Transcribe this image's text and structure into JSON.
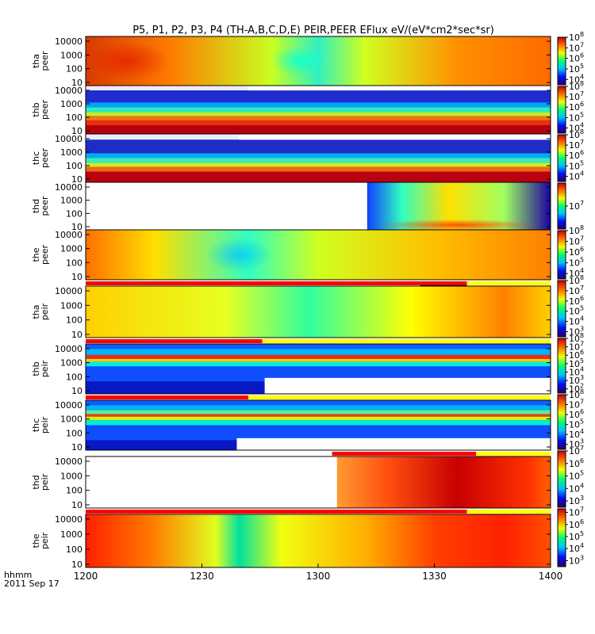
{
  "title": "P5, P1, P2, P3, P4 (TH-A,B,C,D,E) PEIR,PEER EFlux eV/(eV*cm2*sec*sr)",
  "chart_data": {
    "type": "heatmap",
    "title": "P5, P1, P2, P3, P4 (TH-A,B,C,D,E) PEIR,PEER EFlux eV/(eV*cm2*sec*sr)",
    "x_axis": {
      "ticks": [
        "1200",
        "1230",
        "1300",
        "1330",
        "1400"
      ],
      "label_line1": "hhmm",
      "label_line2": "2011 Sep 17"
    },
    "y_ticks": [
      "10",
      "100",
      "1000",
      "10000"
    ],
    "colormap": [
      "#2a005f",
      "#0010ff",
      "#00c0ff",
      "#00ff70",
      "#f0ff00",
      "#ff7000",
      "#c80000"
    ],
    "panels": [
      {
        "probe": "tha",
        "species": "peer",
        "cbar_exponents": [
          "4",
          "5",
          "6",
          "7",
          "8"
        ],
        "cbar_min_exp": 3.5,
        "cbar_max_exp": 8,
        "mode_bar": null,
        "background": [
          {
            "x": 0,
            "c": "#d83a00"
          },
          {
            "x": 0.18,
            "c": "#ff7a00"
          },
          {
            "x": 0.4,
            "c": "#c8ff20"
          },
          {
            "x": 0.5,
            "c": "#30f0c0"
          },
          {
            "x": 0.6,
            "c": "#d0ff20"
          },
          {
            "x": 0.8,
            "c": "#ff9000"
          },
          {
            "x": 1,
            "c": "#ff6a00"
          }
        ],
        "stripes": [],
        "blank": [],
        "blobs": [
          {
            "x": 0.09,
            "y": 0.5,
            "rx": 0.09,
            "ry": 0.4,
            "c": "#e82000",
            "o": 0.8
          },
          {
            "x": 0.46,
            "y": 0.5,
            "rx": 0.06,
            "ry": 0.32,
            "c": "#00ffe0",
            "o": 0.8
          }
        ]
      },
      {
        "probe": "thb",
        "species": "peer",
        "cbar_exponents": [
          "4",
          "5",
          "6",
          "7",
          "8"
        ],
        "cbar_min_exp": 3.5,
        "cbar_max_exp": 8,
        "mode_bar": null,
        "background": [
          {
            "x": 0,
            "c": "#1a10b8"
          },
          {
            "x": 1,
            "c": "#1a10b8"
          }
        ],
        "stripes": [
          {
            "y0": 0,
            "y1": 0.1,
            "c": "#ffffff"
          },
          {
            "y0": 0.1,
            "y1": 0.35,
            "c": "#2030d0"
          },
          {
            "y0": 0.35,
            "y1": 0.45,
            "c": "#00b0ff"
          },
          {
            "y0": 0.45,
            "y1": 0.55,
            "c": "#30ffc0"
          },
          {
            "y0": 0.55,
            "y1": 0.63,
            "c": "#d0ff20"
          },
          {
            "y0": 0.63,
            "y1": 0.72,
            "c": "#ff8000"
          },
          {
            "y0": 0.72,
            "y1": 0.82,
            "c": "#ff3000"
          },
          {
            "y0": 0.82,
            "y1": 1,
            "c": "#c00000"
          }
        ],
        "blank": [
          {
            "x0": 0.35,
            "x1": 1,
            "y0": 0,
            "y1": 0.1
          }
        ],
        "blobs": []
      },
      {
        "probe": "thc",
        "species": "peer",
        "cbar_exponents": [
          "4",
          "5",
          "6",
          "7",
          "8"
        ],
        "cbar_min_exp": 3.5,
        "cbar_max_exp": 8,
        "mode_bar": null,
        "background": [
          {
            "x": 0,
            "c": "#1a10b8"
          },
          {
            "x": 1,
            "c": "#1a10b8"
          }
        ],
        "stripes": [
          {
            "y0": 0,
            "y1": 0.12,
            "c": "#ffffff"
          },
          {
            "y0": 0.12,
            "y1": 0.4,
            "c": "#2030c8"
          },
          {
            "y0": 0.4,
            "y1": 0.5,
            "c": "#00b8ff"
          },
          {
            "y0": 0.5,
            "y1": 0.6,
            "c": "#40ffb0"
          },
          {
            "y0": 0.6,
            "y1": 0.68,
            "c": "#e0ff20"
          },
          {
            "y0": 0.68,
            "y1": 0.78,
            "c": "#ff7000"
          },
          {
            "y0": 0.78,
            "y1": 1,
            "c": "#c80000"
          }
        ],
        "blank": [
          {
            "x0": 0.33,
            "x1": 1,
            "y0": 0,
            "y1": 0.12
          }
        ],
        "blobs": []
      },
      {
        "probe": "thd",
        "species": "peer",
        "cbar_exponents": [
          "7"
        ],
        "cbar_min_exp": 6.8,
        "cbar_max_exp": 7.2,
        "mode_bar": null,
        "background": [
          {
            "x": 0,
            "c": "#ffffff"
          },
          {
            "x": 0.605,
            "c": "#ffffff"
          },
          {
            "x": 0.606,
            "c": "#1040ff"
          },
          {
            "x": 0.68,
            "c": "#30ffc0"
          },
          {
            "x": 0.78,
            "c": "#ffe000"
          },
          {
            "x": 0.9,
            "c": "#a0ff60"
          },
          {
            "x": 1,
            "c": "#1a00a0"
          }
        ],
        "stripes": [],
        "blank": [],
        "blobs": [
          {
            "x": 0.8,
            "y": 0.9,
            "rx": 0.18,
            "ry": 0.12,
            "c": "#ff3000",
            "o": 0.8
          }
        ]
      },
      {
        "probe": "the",
        "species": "peer",
        "cbar_exponents": [
          "4",
          "5",
          "6",
          "7",
          "8"
        ],
        "cbar_min_exp": 3.5,
        "cbar_max_exp": 8,
        "mode_bar": null,
        "background": [
          {
            "x": 0,
            "c": "#ff7000"
          },
          {
            "x": 0.15,
            "c": "#ffe000"
          },
          {
            "x": 0.35,
            "c": "#30ffc0"
          },
          {
            "x": 0.5,
            "c": "#d0ff20"
          },
          {
            "x": 0.75,
            "c": "#ffc000"
          },
          {
            "x": 1,
            "c": "#ff8000"
          }
        ],
        "stripes": [],
        "blank": [],
        "blobs": [
          {
            "x": 0.33,
            "y": 0.5,
            "rx": 0.07,
            "ry": 0.35,
            "c": "#00c0ff",
            "o": 0.75
          }
        ]
      },
      {
        "probe": "tha",
        "species": "peir",
        "cbar_exponents": [
          "3",
          "4",
          "5",
          "6",
          "7",
          "8"
        ],
        "cbar_min_exp": 2.5,
        "cbar_max_exp": 8,
        "mode_bar": {
          "segments": [
            {
              "x0": 0,
              "x1": 0.82,
              "c": "#ff0000"
            },
            {
              "x0": 0.82,
              "x1": 1,
              "c": "#ffff00"
            }
          ],
          "dark": [
            {
              "x0": 0.72,
              "x1": 0.82
            }
          ]
        },
        "background": [
          {
            "x": 0,
            "c": "#ffd000"
          },
          {
            "x": 0.3,
            "c": "#e8ff20"
          },
          {
            "x": 0.48,
            "c": "#30ffa0"
          },
          {
            "x": 0.7,
            "c": "#ffff00"
          },
          {
            "x": 0.9,
            "c": "#ff8000"
          },
          {
            "x": 1,
            "c": "#ffd000"
          }
        ],
        "stripes": [],
        "blank": [],
        "blobs": []
      },
      {
        "probe": "thb",
        "species": "peir",
        "cbar_exponents": [
          "2",
          "3",
          "4",
          "5",
          "6",
          "7",
          "8"
        ],
        "cbar_min_exp": 1.5,
        "cbar_max_exp": 8,
        "mode_bar": {
          "segments": [
            {
              "x0": 0,
              "x1": 0.38,
              "c": "#ff0000"
            },
            {
              "x0": 0.38,
              "x1": 1,
              "c": "#ffff00"
            }
          ],
          "dark": []
        },
        "background": [
          {
            "x": 0,
            "c": "#1030e0"
          },
          {
            "x": 1,
            "c": "#1030e0"
          }
        ],
        "stripes": [
          {
            "y0": 0,
            "y1": 0.1,
            "c": "#1060ff"
          },
          {
            "y0": 0.1,
            "y1": 0.22,
            "c": "#00c0ff"
          },
          {
            "y0": 0.22,
            "y1": 0.3,
            "c": "#ff3000"
          },
          {
            "y0": 0.3,
            "y1": 0.36,
            "c": "#ffe000"
          },
          {
            "y0": 0.36,
            "y1": 0.45,
            "c": "#00ffe0"
          },
          {
            "y0": 0.45,
            "y1": 0.75,
            "c": "#1050ff"
          },
          {
            "y0": 0.75,
            "y1": 1,
            "c": "#0818c0"
          }
        ],
        "blank": [
          {
            "x0": 0.385,
            "x1": 1,
            "y0": 0.68,
            "y1": 1
          }
        ],
        "blobs": []
      },
      {
        "probe": "thc",
        "species": "peir",
        "cbar_exponents": [
          "3",
          "4",
          "5",
          "6",
          "7",
          "8"
        ],
        "cbar_min_exp": 2.5,
        "cbar_max_exp": 8,
        "mode_bar": {
          "segments": [
            {
              "x0": 0,
              "x1": 0.35,
              "c": "#ff0000"
            },
            {
              "x0": 0.35,
              "x1": 1,
              "c": "#ffff00"
            }
          ],
          "dark": []
        },
        "background": [
          {
            "x": 0,
            "c": "#1030e0"
          },
          {
            "x": 1,
            "c": "#1030e0"
          }
        ],
        "stripes": [
          {
            "y0": 0,
            "y1": 0.1,
            "c": "#1060ff"
          },
          {
            "y0": 0.1,
            "y1": 0.2,
            "c": "#00c0ff"
          },
          {
            "y0": 0.2,
            "y1": 0.28,
            "c": "#60ff90"
          },
          {
            "y0": 0.28,
            "y1": 0.33,
            "c": "#ff4000"
          },
          {
            "y0": 0.33,
            "y1": 0.4,
            "c": "#f0ff00"
          },
          {
            "y0": 0.4,
            "y1": 0.5,
            "c": "#00ffd0"
          },
          {
            "y0": 0.5,
            "y1": 0.8,
            "c": "#1050ff"
          },
          {
            "y0": 0.8,
            "y1": 1,
            "c": "#0818c0"
          }
        ],
        "blank": [
          {
            "x0": 0.325,
            "x1": 1,
            "y0": 0.76,
            "y1": 1
          }
        ],
        "blobs": []
      },
      {
        "probe": "thd",
        "species": "peir",
        "cbar_exponents": [
          "3",
          "4",
          "5",
          "6",
          "7"
        ],
        "cbar_min_exp": 2.5,
        "cbar_max_exp": 7,
        "mode_bar": {
          "segments": [
            {
              "x0": 0.53,
              "x1": 0.84,
              "c": "#ff0000"
            },
            {
              "x0": 0.84,
              "x1": 1,
              "c": "#ffff00"
            }
          ],
          "dark": []
        },
        "background": [
          {
            "x": 0,
            "c": "#ffffff"
          },
          {
            "x": 0.54,
            "c": "#ffffff"
          },
          {
            "x": 0.541,
            "c": "#ff9a30"
          },
          {
            "x": 0.65,
            "c": "#ff5010"
          },
          {
            "x": 0.8,
            "c": "#c80000"
          },
          {
            "x": 0.95,
            "c": "#ff3000"
          },
          {
            "x": 1,
            "c": "#ff6000"
          }
        ],
        "stripes": [],
        "blank": [],
        "blobs": []
      },
      {
        "probe": "the",
        "species": "peir",
        "cbar_exponents": [
          "3",
          "4",
          "5",
          "6",
          "7"
        ],
        "cbar_min_exp": 2.5,
        "cbar_max_exp": 7.3,
        "mode_bar": {
          "segments": [
            {
              "x0": 0,
              "x1": 0.82,
              "c": "#ff0000"
            },
            {
              "x0": 0.82,
              "x1": 1,
              "c": "#ffff00"
            }
          ],
          "dark": []
        },
        "background": [
          {
            "x": 0,
            "c": "#ff2000"
          },
          {
            "x": 0.15,
            "c": "#ff8000"
          },
          {
            "x": 0.28,
            "c": "#e0ff20"
          },
          {
            "x": 0.33,
            "c": "#00e0a0"
          },
          {
            "x": 0.42,
            "c": "#f0ff10"
          },
          {
            "x": 0.6,
            "c": "#ffb000"
          },
          {
            "x": 0.75,
            "c": "#ff4000"
          },
          {
            "x": 0.9,
            "c": "#ff2000"
          },
          {
            "x": 1,
            "c": "#ff5000"
          }
        ],
        "stripes": [],
        "blank": [],
        "blobs": []
      }
    ]
  }
}
